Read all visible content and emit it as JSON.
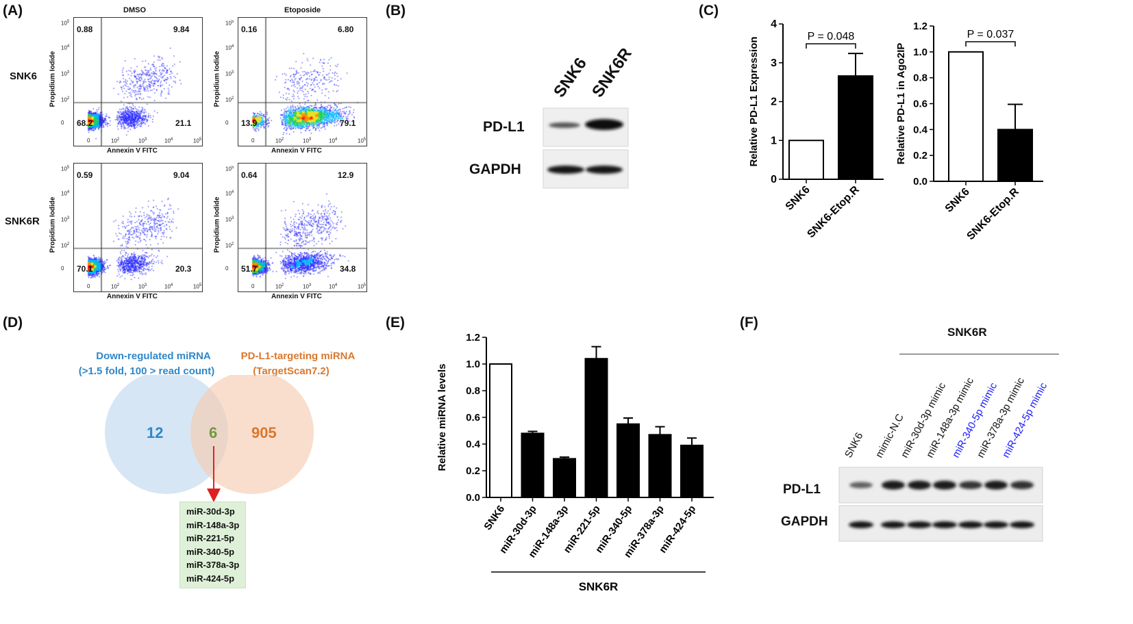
{
  "panels": {
    "A": "(A)",
    "B": "(B)",
    "C": "(C)",
    "D": "(D)",
    "E": "(E)",
    "F": "(F)"
  },
  "flow": {
    "columns": [
      "DMSO",
      "Etoposide"
    ],
    "rows": [
      "SNK6",
      "SNK6R"
    ],
    "x_label": "Annexin V FITC",
    "y_label": "Propidium Iodide",
    "ticks": [
      "0",
      "10",
      "10",
      "10",
      "10"
    ],
    "tick_exp": [
      "",
      "2",
      "3",
      "4",
      "5"
    ],
    "plots": [
      {
        "row": "SNK6",
        "col": "DMSO",
        "q": {
          "ul": "0.88",
          "ur": "9.84",
          "ll": "68.2",
          "lr": "21.1"
        }
      },
      {
        "row": "SNK6",
        "col": "Etoposide",
        "q": {
          "ul": "0.16",
          "ur": "6.80",
          "ll": "13.9",
          "lr": "79.1"
        }
      },
      {
        "row": "SNK6R",
        "col": "DMSO",
        "q": {
          "ul": "0.59",
          "ur": "9.04",
          "ll": "70.1",
          "lr": "20.3"
        }
      },
      {
        "row": "SNK6R",
        "col": "Etoposide",
        "q": {
          "ul": "0.64",
          "ur": "12.9",
          "ll": "51.7",
          "lr": "34.8"
        }
      }
    ]
  },
  "blotB": {
    "lanes": [
      "SNK6",
      "SNK6R"
    ],
    "rows": [
      "PD-L1",
      "GAPDH"
    ]
  },
  "chart_data": [
    {
      "type": "bar",
      "id": "C1",
      "categories": [
        "SNK6",
        "SNK6-Etop.R"
      ],
      "values": [
        1.0,
        2.66
      ],
      "errors": [
        0,
        0.58
      ],
      "fills": [
        "#ffffff",
        "#000000"
      ],
      "ylabel": "Relative PD-L1 Expression",
      "ylim": [
        0,
        4
      ],
      "yticks": [
        "0",
        "1",
        "2",
        "3",
        "4"
      ],
      "annotation": "P = 0.048"
    },
    {
      "type": "bar",
      "id": "C2",
      "categories": [
        "SNK6",
        "SNK6-Etop.R"
      ],
      "values": [
        1.0,
        0.4
      ],
      "errors": [
        0,
        0.195
      ],
      "fills": [
        "#ffffff",
        "#000000"
      ],
      "ylabel": "Relative PD-L1 in Ago2IP",
      "ylim": [
        0,
        1.2
      ],
      "yticks": [
        "0.0",
        "0.2",
        "0.4",
        "0.6",
        "0.8",
        "1.0",
        "1.2"
      ],
      "annotation": "P = 0.037"
    },
    {
      "type": "bar",
      "id": "E",
      "categories": [
        "SNK6",
        "miR-30d-3p",
        "miR-148a-3p",
        "miR-221-5p",
        "miR-340-5p",
        "miR-378a-3p",
        "miR-424-5p"
      ],
      "values": [
        1.0,
        0.48,
        0.29,
        1.04,
        0.55,
        0.47,
        0.39
      ],
      "errors": [
        0,
        0.015,
        0.012,
        0.09,
        0.045,
        0.06,
        0.055
      ],
      "fills": [
        "#ffffff",
        "#000000",
        "#000000",
        "#000000",
        "#000000",
        "#000000",
        "#000000"
      ],
      "ylabel": "Relative miRNA levels",
      "ylim": [
        0,
        1.2
      ],
      "yticks": [
        "0.0",
        "0.2",
        "0.4",
        "0.6",
        "0.8",
        "1.0",
        "1.2"
      ],
      "group_label": "SNK6R"
    }
  ],
  "venn": {
    "left_title_1": "Down-regulated miRNA",
    "left_title_2": "(>1.5 fold, 100 > read count)",
    "right_title_1": "PD-L1-targeting miRNA",
    "right_title_2": "(TargetScan7.2)",
    "left_count": "12",
    "overlap_count": "6",
    "right_count": "905",
    "overlap_list": [
      "miR-30d-3p",
      "miR-148a-3p",
      "miR-221-5p",
      "miR-340-5p",
      "miR-378a-3p",
      "miR-424-5p"
    ],
    "colors": {
      "left": "#2f87c8",
      "overlap": "#6e9a3c",
      "right": "#d9782e",
      "arrow": "#e02020"
    }
  },
  "blotF": {
    "group": "SNK6R",
    "lanes": [
      "SNK6",
      "mimic-N.C",
      "miR-30d-3p mimic",
      "miR-148a-3p mimic",
      "miR-340-5p mimic",
      "miR-378a-3p mimic",
      "miR-424-5p mimic"
    ],
    "lane_colors": [
      "#111111",
      "#111111",
      "#111111",
      "#111111",
      "#1a1aff",
      "#111111",
      "#1a1aff"
    ],
    "rows": [
      "PD-L1",
      "GAPDH"
    ]
  }
}
